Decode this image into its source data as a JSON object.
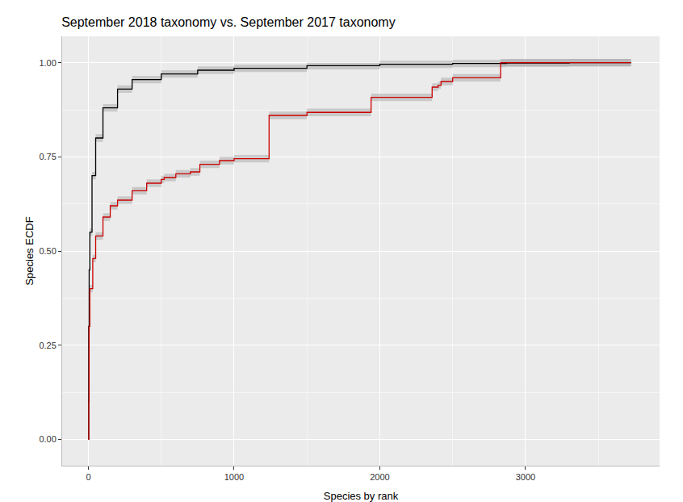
{
  "chart_data": {
    "type": "line",
    "title": "September 2018 taxonomy vs. September 2017 taxonomy",
    "x_label": "Species by rank",
    "y_label": "Species ECDF",
    "xlim": [
      -180,
      3920
    ],
    "ylim": [
      -0.07,
      1.07
    ],
    "xticks": [
      0,
      1000,
      2000,
      3000
    ],
    "yticks": [
      {
        "value": 0,
        "label": "0.00"
      },
      {
        "value": 0.25,
        "label": "0.25"
      },
      {
        "value": 0.5,
        "label": "0.50"
      },
      {
        "value": 0.75,
        "label": "0.75"
      },
      {
        "value": 1,
        "label": "1.00"
      }
    ],
    "grid": true,
    "series": [
      {
        "color": "#000000",
        "x": [
          0,
          2,
          5,
          10,
          25,
          50,
          100,
          200,
          300,
          500,
          750,
          1000,
          1500,
          2000,
          2500,
          2870,
          3300,
          3724
        ],
        "values": [
          0,
          0.3,
          0.45,
          0.55,
          0.7,
          0.8,
          0.88,
          0.93,
          0.955,
          0.97,
          0.98,
          0.985,
          0.992,
          0.996,
          0.998,
          0.999,
          1.0,
          1.0
        ],
        "lower": [
          0,
          0.29,
          0.44,
          0.54,
          0.69,
          0.79,
          0.87,
          0.92,
          0.945,
          0.96,
          0.97,
          0.975,
          0.982,
          0.986,
          0.988,
          0.989,
          0.99,
          0.99
        ],
        "upper": [
          0,
          0.31,
          0.46,
          0.56,
          0.71,
          0.81,
          0.89,
          0.94,
          0.965,
          0.98,
          0.99,
          0.995,
          1.0,
          1.005,
          1.008,
          1.009,
          1.01,
          1.01
        ]
      },
      {
        "color": "#cc0000",
        "x": [
          0,
          3,
          5,
          10,
          30,
          50,
          100,
          150,
          200,
          300,
          400,
          500,
          520,
          600,
          700,
          765,
          900,
          1000,
          1240,
          1500,
          1940,
          2000,
          2359,
          2400,
          2420,
          2500,
          2829,
          3300,
          3724
        ],
        "values": [
          0,
          0.1,
          0.3,
          0.4,
          0.48,
          0.54,
          0.59,
          0.62,
          0.635,
          0.66,
          0.68,
          0.69,
          0.695,
          0.705,
          0.71,
          0.73,
          0.74,
          0.745,
          0.86,
          0.868,
          0.908,
          0.908,
          0.935,
          0.94,
          0.95,
          0.96,
          1.0,
          1.0,
          1.0
        ],
        "lower": [
          0,
          0.09,
          0.29,
          0.39,
          0.47,
          0.53,
          0.58,
          0.61,
          0.625,
          0.65,
          0.67,
          0.68,
          0.685,
          0.695,
          0.7,
          0.72,
          0.73,
          0.735,
          0.85,
          0.858,
          0.898,
          0.898,
          0.925,
          0.93,
          0.94,
          0.95,
          0.99,
          0.99,
          0.99
        ],
        "upper": [
          0,
          0.11,
          0.31,
          0.41,
          0.49,
          0.55,
          0.6,
          0.63,
          0.645,
          0.67,
          0.69,
          0.7,
          0.705,
          0.715,
          0.72,
          0.74,
          0.75,
          0.755,
          0.87,
          0.878,
          0.918,
          0.918,
          0.945,
          0.95,
          0.96,
          0.97,
          1.01,
          1.01,
          1.01
        ]
      }
    ]
  }
}
